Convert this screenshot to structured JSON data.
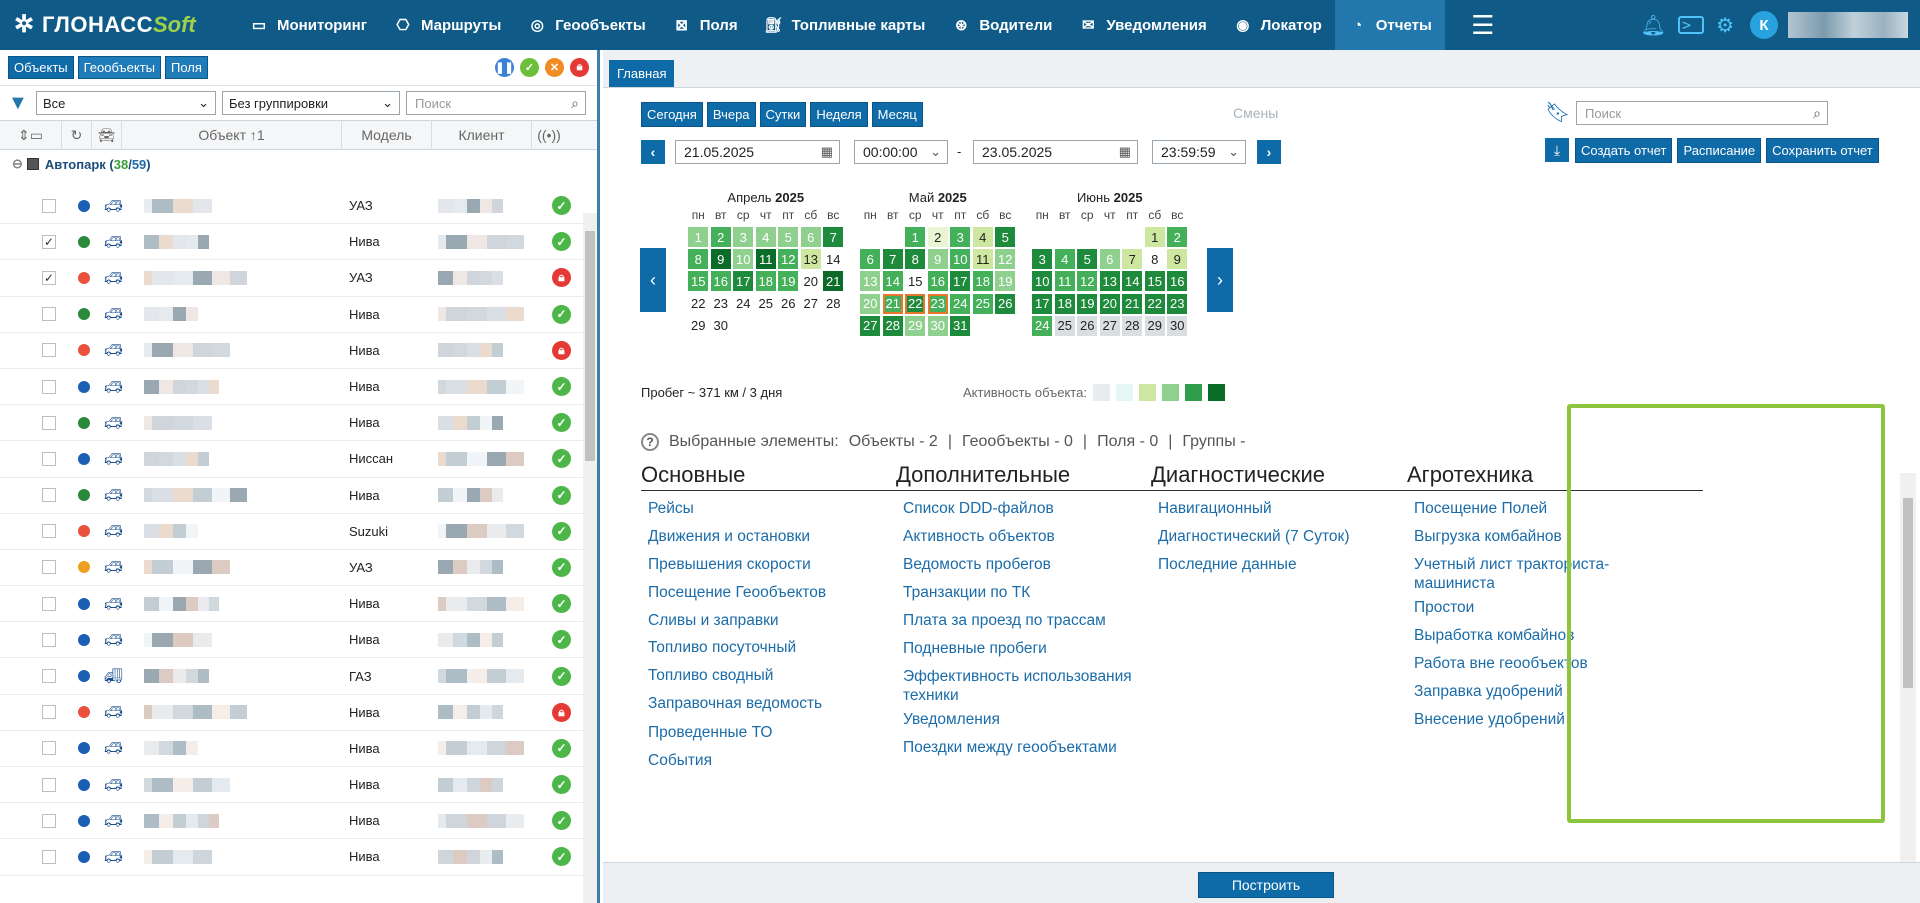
{
  "app": {
    "logo_main": "ГЛОНАСС",
    "logo_suffix": "Soft",
    "user_initial": "К"
  },
  "nav": [
    {
      "label": "Мониторинг",
      "icon": "monitor-icon"
    },
    {
      "label": "Маршруты",
      "icon": "bus-icon"
    },
    {
      "label": "Геообъекты",
      "icon": "globe-icon"
    },
    {
      "label": "Поля",
      "icon": "field-icon"
    },
    {
      "label": "Топливные карты",
      "icon": "fuel-card-icon"
    },
    {
      "label": "Водители",
      "icon": "steering-wheel-icon"
    },
    {
      "label": "Уведомления",
      "icon": "mail-icon"
    },
    {
      "label": "Локатор",
      "icon": "locator-icon"
    },
    {
      "label": "Отчеты",
      "icon": "reports-icon",
      "active": true
    }
  ],
  "left": {
    "tabs": [
      "Объекты",
      "Геообъекты",
      "Поля"
    ],
    "filter_value": "Все",
    "grouping_value": "Без группировки",
    "search_placeholder": "Поиск",
    "columns": {
      "object": "Объект ↑1",
      "model": "Модель",
      "client": "Клиент"
    },
    "group": {
      "name": "Автопарк",
      "count_a": "38",
      "count_b": "59"
    },
    "rows": [
      {
        "model": "УАЗ",
        "dot": "#1a5fb4",
        "status": "ok",
        "checked": false
      },
      {
        "model": "Нива",
        "dot": "#2a8a3a",
        "status": "ok",
        "checked": true
      },
      {
        "model": "УАЗ",
        "dot": "#e9513c",
        "status": "lock",
        "checked": true
      },
      {
        "model": "Нива",
        "dot": "#2a8a3a",
        "status": "ok",
        "checked": false
      },
      {
        "model": "Нива",
        "dot": "#e9513c",
        "status": "lock",
        "checked": false
      },
      {
        "model": "Нива",
        "dot": "#1a5fb4",
        "status": "ok",
        "checked": false
      },
      {
        "model": "Нива",
        "dot": "#2a8a3a",
        "status": "ok",
        "checked": false
      },
      {
        "model": "Ниссан",
        "dot": "#1a5fb4",
        "status": "ok",
        "checked": false
      },
      {
        "model": "Нива",
        "dot": "#2a8a3a",
        "status": "ok",
        "checked": false
      },
      {
        "model": "Suzuki",
        "dot": "#e9513c",
        "status": "ok",
        "checked": false
      },
      {
        "model": "УАЗ",
        "dot": "#f0a020",
        "status": "ok",
        "checked": false
      },
      {
        "model": "Нива",
        "dot": "#1a5fb4",
        "status": "ok",
        "checked": false
      },
      {
        "model": "Нива",
        "dot": "#1a5fb4",
        "status": "ok",
        "checked": false
      },
      {
        "model": "ГАЗ",
        "dot": "#1a5fb4",
        "status": "ok",
        "checked": false,
        "truck": true
      },
      {
        "model": "Нива",
        "dot": "#e9513c",
        "status": "lock",
        "checked": false
      },
      {
        "model": "Нива",
        "dot": "#1a5fb4",
        "status": "ok",
        "checked": false
      },
      {
        "model": "Нива",
        "dot": "#1a5fb4",
        "status": "ok",
        "checked": false
      },
      {
        "model": "Нива",
        "dot": "#1a5fb4",
        "status": "ok",
        "checked": false
      },
      {
        "model": "Нива",
        "dot": "#1a5fb4",
        "status": "ok",
        "checked": false
      }
    ]
  },
  "right": {
    "tab": "Главная",
    "quick": [
      "Сегодня",
      "Вчера",
      "Сутки",
      "Неделя",
      "Месяц"
    ],
    "shifts_label": "Смены",
    "search_placeholder": "Поиск",
    "date_from": "21.05.2025",
    "time_from": "00:00:00",
    "date_to": "23.05.2025",
    "time_to": "23:59:59",
    "dash": "-",
    "actions": [
      "Создать отчет",
      "Расписание",
      "Сохранить отчет"
    ],
    "months": [
      {
        "name": "Апрель",
        "year": "2025"
      },
      {
        "name": "Май",
        "year": "2025"
      },
      {
        "name": "Июнь",
        "year": "2025"
      }
    ],
    "dow": [
      "пн",
      "вт",
      "ср",
      "чт",
      "пт",
      "сб",
      "вс"
    ],
    "mileage": "Пробег ~ 371 км / 3 дня",
    "activity_label": "Активность объекта:",
    "selected": {
      "label": "Выбранные элементы:",
      "objects": "Объекты - 2",
      "geo": "Геообъекты - 0",
      "fields": "Поля - 0",
      "groups": "Группы -",
      "sep": "|"
    },
    "sections": [
      {
        "title": "Основные",
        "links": [
          "Рейсы",
          "Движения и остановки",
          "Превышения скорости",
          "Посещение Геообъектов",
          "Сливы и заправки",
          "Топливо посуточный",
          "Топливо сводный",
          "Заправочная ведомость",
          "Проведенные ТО",
          "События"
        ]
      },
      {
        "title": "Дополнительные",
        "links": [
          "Список DDD-файлов",
          "Активность объектов",
          "Ведомость пробегов",
          "Транзакции по ТК",
          "Плата за проезд по трассам",
          "Подневные пробеги",
          "Эффективность использования техники",
          "Уведомления",
          "Поездки между геообъектами"
        ]
      },
      {
        "title": "Диагностические",
        "links": [
          "Навигационный",
          "Диагностический (7 Суток)",
          "Последние данные"
        ]
      },
      {
        "title": "Агротехника",
        "links": [
          "Посещение Полей",
          "Выгрузка комбайнов",
          "Учетный лист тракториста-машиниста",
          "Простои",
          "Выработка комбайнов",
          "Работа вне геообъектов",
          "Заправка удобрений",
          "Внесение удобрений"
        ]
      }
    ],
    "build": "Построить"
  },
  "colors": {
    "brand": "#0f5a87",
    "accent": "#0f6ba8",
    "highlight": "#8cc63f",
    "ok": "#4cb748",
    "lock": "#e53935"
  }
}
